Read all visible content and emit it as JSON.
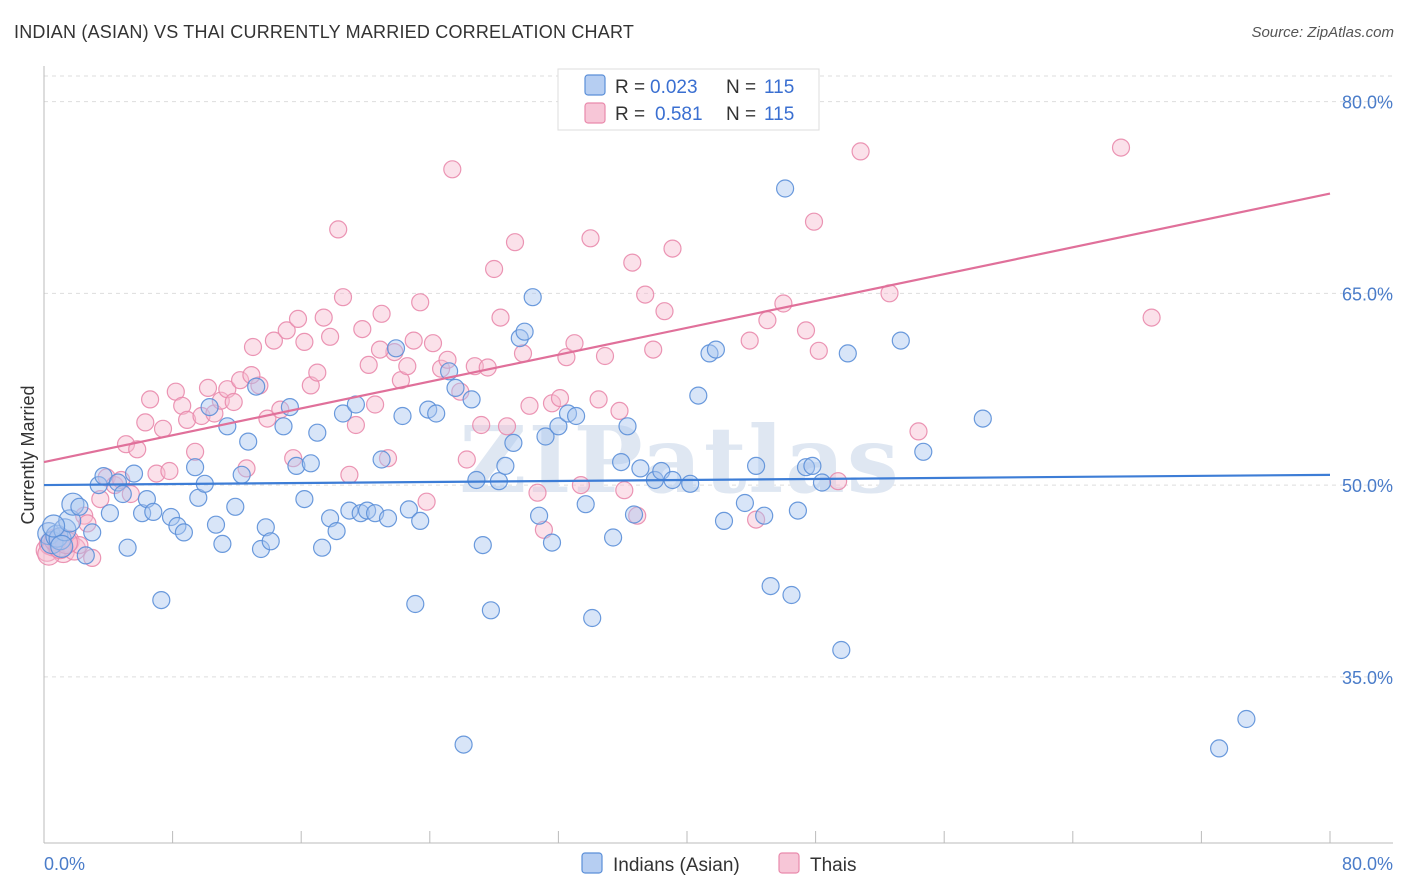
{
  "title": "INDIAN (ASIAN) VS THAI CURRENTLY MARRIED CORRELATION CHART",
  "source": "Source: ZipAtlas.com",
  "watermark": "ZIPatlas",
  "colors": {
    "indians_fill": "#a9c6f0",
    "indians_stroke": "#5b8fd8",
    "indians_line": "#3d7dd6",
    "thais_fill": "#f6bcd0",
    "thais_stroke": "#e98aac",
    "thais_line": "#e0709a",
    "grid": "#dddddd",
    "tick_label": "#4a7cc9"
  },
  "legend": {
    "rows": [
      {
        "r_label": "R =",
        "r_value": "0.023",
        "n_label": "N =",
        "n_value": "115",
        "series": "indians"
      },
      {
        "r_label": "R =",
        "r_value": "0.581",
        "n_label": "N =",
        "n_value": "115",
        "series": "thais"
      }
    ]
  },
  "chart_data": {
    "type": "scatter",
    "title": "INDIAN (ASIAN) VS THAI CURRENTLY MARRIED CORRELATION CHART",
    "xlabel": "",
    "ylabel": "Currently Married",
    "xlim": [
      0,
      80
    ],
    "ylim": [
      22,
      82
    ],
    "x_tick_labels": [
      "0.0%",
      "80.0%"
    ],
    "y_ticks": [
      35,
      50,
      65,
      80
    ],
    "y_tick_labels": [
      "35.0%",
      "50.0%",
      "65.0%",
      "80.0%"
    ],
    "grid": "horizontal dashed",
    "legend_position": "top-center",
    "series": [
      {
        "name": "Indians (Asian)",
        "key": "indians",
        "trend": [
          [
            0,
            50.0
          ],
          [
            80,
            50.8
          ]
        ],
        "points": [
          [
            0.3,
            46.2
          ],
          [
            0.5,
            45.5
          ],
          [
            0.8,
            46.0
          ],
          [
            1.0,
            45.8
          ],
          [
            1.3,
            46.5
          ],
          [
            1.6,
            47.2
          ],
          [
            1.8,
            48.5
          ],
          [
            2.2,
            48.3
          ],
          [
            2.6,
            44.5
          ],
          [
            3.0,
            46.3
          ],
          [
            3.4,
            50.0
          ],
          [
            3.7,
            50.7
          ],
          [
            4.1,
            47.8
          ],
          [
            4.6,
            50.2
          ],
          [
            4.9,
            49.3
          ],
          [
            5.2,
            45.1
          ],
          [
            5.6,
            50.9
          ],
          [
            6.1,
            47.8
          ],
          [
            6.4,
            48.9
          ],
          [
            6.8,
            47.9
          ],
          [
            7.3,
            41.0
          ],
          [
            7.9,
            47.5
          ],
          [
            8.3,
            46.8
          ],
          [
            8.7,
            46.3
          ],
          [
            9.4,
            51.4
          ],
          [
            9.6,
            49.0
          ],
          [
            10.0,
            50.1
          ],
          [
            10.3,
            56.1
          ],
          [
            10.7,
            46.9
          ],
          [
            11.1,
            45.4
          ],
          [
            11.4,
            54.6
          ],
          [
            11.9,
            48.3
          ],
          [
            12.3,
            50.8
          ],
          [
            12.7,
            53.4
          ],
          [
            13.2,
            57.7
          ],
          [
            13.5,
            45.0
          ],
          [
            13.8,
            46.7
          ],
          [
            14.1,
            45.6
          ],
          [
            14.9,
            54.6
          ],
          [
            15.3,
            56.1
          ],
          [
            15.7,
            51.5
          ],
          [
            16.2,
            48.9
          ],
          [
            16.6,
            51.7
          ],
          [
            17.0,
            54.1
          ],
          [
            17.3,
            45.1
          ],
          [
            17.8,
            47.4
          ],
          [
            18.2,
            46.4
          ],
          [
            18.6,
            55.6
          ],
          [
            19.0,
            48.0
          ],
          [
            19.4,
            56.3
          ],
          [
            19.7,
            47.8
          ],
          [
            20.1,
            48.0
          ],
          [
            20.6,
            47.8
          ],
          [
            21.0,
            52.0
          ],
          [
            21.4,
            47.4
          ],
          [
            21.9,
            60.7
          ],
          [
            22.3,
            55.4
          ],
          [
            22.7,
            48.1
          ],
          [
            23.1,
            40.7
          ],
          [
            23.4,
            47.2
          ],
          [
            23.9,
            55.9
          ],
          [
            24.4,
            55.6
          ],
          [
            25.2,
            58.9
          ],
          [
            25.6,
            57.6
          ],
          [
            26.1,
            29.7
          ],
          [
            26.6,
            56.7
          ],
          [
            26.9,
            50.4
          ],
          [
            27.3,
            45.3
          ],
          [
            27.8,
            40.2
          ],
          [
            28.3,
            50.3
          ],
          [
            28.7,
            51.5
          ],
          [
            29.2,
            53.3
          ],
          [
            29.6,
            61.5
          ],
          [
            29.9,
            62.0
          ],
          [
            30.4,
            64.7
          ],
          [
            30.8,
            47.6
          ],
          [
            31.2,
            53.8
          ],
          [
            31.6,
            45.5
          ],
          [
            32.0,
            54.6
          ],
          [
            32.6,
            55.6
          ],
          [
            33.1,
            55.4
          ],
          [
            33.7,
            48.5
          ],
          [
            34.1,
            39.6
          ],
          [
            35.4,
            45.9
          ],
          [
            35.9,
            51.8
          ],
          [
            36.3,
            54.6
          ],
          [
            36.7,
            47.7
          ],
          [
            37.1,
            51.3
          ],
          [
            38.0,
            50.4
          ],
          [
            38.4,
            51.1
          ],
          [
            39.1,
            50.4
          ],
          [
            40.2,
            50.1
          ],
          [
            40.7,
            57.0
          ],
          [
            41.4,
            60.3
          ],
          [
            41.8,
            60.6
          ],
          [
            42.3,
            47.2
          ],
          [
            43.6,
            48.6
          ],
          [
            44.3,
            51.5
          ],
          [
            44.8,
            47.6
          ],
          [
            45.2,
            42.1
          ],
          [
            46.1,
            73.2
          ],
          [
            46.5,
            41.4
          ],
          [
            46.9,
            48.0
          ],
          [
            47.4,
            51.4
          ],
          [
            47.8,
            51.5
          ],
          [
            48.4,
            50.2
          ],
          [
            49.6,
            37.1
          ],
          [
            50.0,
            60.3
          ],
          [
            53.3,
            61.3
          ],
          [
            54.7,
            52.6
          ],
          [
            58.4,
            55.2
          ],
          [
            73.1,
            29.4
          ],
          [
            74.8,
            31.7
          ],
          [
            0.6,
            46.8
          ],
          [
            1.1,
            45.2
          ]
        ]
      },
      {
        "name": "Thais",
        "key": "thais",
        "trend": [
          [
            0,
            51.8
          ],
          [
            80,
            72.8
          ]
        ],
        "points": [
          [
            0.2,
            44.9
          ],
          [
            0.4,
            45.4
          ],
          [
            0.6,
            45.3
          ],
          [
            0.9,
            45.2
          ],
          [
            1.2,
            44.8
          ],
          [
            1.5,
            45.6
          ],
          [
            1.9,
            45.0
          ],
          [
            2.2,
            45.3
          ],
          [
            2.5,
            47.6
          ],
          [
            3.0,
            44.3
          ],
          [
            3.5,
            48.9
          ],
          [
            3.9,
            50.6
          ],
          [
            4.4,
            50.0
          ],
          [
            4.8,
            50.4
          ],
          [
            5.1,
            53.2
          ],
          [
            5.4,
            49.3
          ],
          [
            5.8,
            52.8
          ],
          [
            6.3,
            54.9
          ],
          [
            6.6,
            56.7
          ],
          [
            7.0,
            50.9
          ],
          [
            7.4,
            54.4
          ],
          [
            7.8,
            51.1
          ],
          [
            8.2,
            57.3
          ],
          [
            8.6,
            56.2
          ],
          [
            8.9,
            55.1
          ],
          [
            9.4,
            52.6
          ],
          [
            9.8,
            55.4
          ],
          [
            10.2,
            57.6
          ],
          [
            10.6,
            55.6
          ],
          [
            11.0,
            56.6
          ],
          [
            11.4,
            57.5
          ],
          [
            11.8,
            56.5
          ],
          [
            12.2,
            58.2
          ],
          [
            12.6,
            51.3
          ],
          [
            13.0,
            60.8
          ],
          [
            13.4,
            57.8
          ],
          [
            13.9,
            55.2
          ],
          [
            14.3,
            61.3
          ],
          [
            14.7,
            55.9
          ],
          [
            15.1,
            62.1
          ],
          [
            15.5,
            52.1
          ],
          [
            15.8,
            63.0
          ],
          [
            16.2,
            61.2
          ],
          [
            16.6,
            57.8
          ],
          [
            17.0,
            58.8
          ],
          [
            17.4,
            63.1
          ],
          [
            17.8,
            61.6
          ],
          [
            18.3,
            70.0
          ],
          [
            18.6,
            64.7
          ],
          [
            19.0,
            50.8
          ],
          [
            19.4,
            54.7
          ],
          [
            19.8,
            62.2
          ],
          [
            20.2,
            59.4
          ],
          [
            20.6,
            56.3
          ],
          [
            21.0,
            63.4
          ],
          [
            21.4,
            52.1
          ],
          [
            21.8,
            60.4
          ],
          [
            22.2,
            58.2
          ],
          [
            22.6,
            59.3
          ],
          [
            23.0,
            61.3
          ],
          [
            23.4,
            64.3
          ],
          [
            23.8,
            48.7
          ],
          [
            24.2,
            61.1
          ],
          [
            24.7,
            59.1
          ],
          [
            25.1,
            59.8
          ],
          [
            25.4,
            74.7
          ],
          [
            25.9,
            57.3
          ],
          [
            26.3,
            52.0
          ],
          [
            26.8,
            59.3
          ],
          [
            27.2,
            54.7
          ],
          [
            27.6,
            59.2
          ],
          [
            28.0,
            66.9
          ],
          [
            28.4,
            63.1
          ],
          [
            28.8,
            54.6
          ],
          [
            29.3,
            69.0
          ],
          [
            29.8,
            60.3
          ],
          [
            30.2,
            56.2
          ],
          [
            30.7,
            49.4
          ],
          [
            31.1,
            46.5
          ],
          [
            31.6,
            56.4
          ],
          [
            32.1,
            56.8
          ],
          [
            32.5,
            60.0
          ],
          [
            33.0,
            61.1
          ],
          [
            33.4,
            50.0
          ],
          [
            34.0,
            69.3
          ],
          [
            34.5,
            56.7
          ],
          [
            34.9,
            60.1
          ],
          [
            35.8,
            55.8
          ],
          [
            36.1,
            49.6
          ],
          [
            36.6,
            67.4
          ],
          [
            36.9,
            47.6
          ],
          [
            37.4,
            64.9
          ],
          [
            37.9,
            60.6
          ],
          [
            38.6,
            63.6
          ],
          [
            39.1,
            68.5
          ],
          [
            43.9,
            61.3
          ],
          [
            44.3,
            47.3
          ],
          [
            45.0,
            62.9
          ],
          [
            46.0,
            64.2
          ],
          [
            47.4,
            62.1
          ],
          [
            47.9,
            70.6
          ],
          [
            48.2,
            60.5
          ],
          [
            49.4,
            50.3
          ],
          [
            50.8,
            76.1
          ],
          [
            52.6,
            65.0
          ],
          [
            54.4,
            54.2
          ],
          [
            67.0,
            76.4
          ],
          [
            68.9,
            63.1
          ],
          [
            0.3,
            44.6
          ],
          [
            0.7,
            45.7
          ],
          [
            1.0,
            45.1
          ],
          [
            1.4,
            45.5
          ],
          [
            2.7,
            47.0
          ],
          [
            12.9,
            58.6
          ],
          [
            20.9,
            60.6
          ]
        ]
      }
    ]
  },
  "bottom_legend": [
    {
      "label": "Indians (Asian)",
      "series": "indians"
    },
    {
      "label": "Thais",
      "series": "thais"
    }
  ]
}
